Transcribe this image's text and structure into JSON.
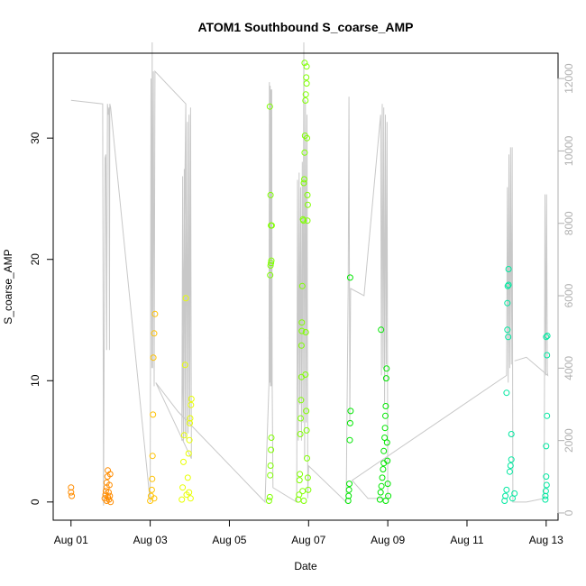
{
  "chart_data": {
    "type": "scatter",
    "title": "ATOM1 Southbound S_coarse_AMP",
    "xlabel": "Date",
    "ylabel": "S_coarse_AMP",
    "x_ticks": [
      "Aug 01",
      "Aug 03",
      "Aug 05",
      "Aug 07",
      "Aug 09",
      "Aug 11",
      "Aug 13"
    ],
    "x_tick_days": [
      1,
      3,
      5,
      7,
      9,
      11,
      13
    ],
    "xlim_days": [
      0.55,
      13.3
    ],
    "y_ticks": [
      "0",
      "10",
      "20",
      "30"
    ],
    "y_tick_values": [
      0,
      10,
      20,
      30
    ],
    "ylim": [
      -1.5,
      37
    ],
    "y2_ticks": [
      "0",
      "2000",
      "4000",
      "6000",
      "8000",
      "10000",
      "12000"
    ],
    "y2_tick_values": [
      0,
      2000,
      4000,
      6000,
      8000,
      10000,
      12000
    ],
    "y2lim": [
      -200,
      12700
    ],
    "grid": false,
    "series": [
      {
        "color": "#ff8c00",
        "points": [
          [
            1.0,
            1.2
          ],
          [
            1.0,
            0.8
          ],
          [
            1.02,
            0.5
          ],
          [
            1.85,
            0.3
          ],
          [
            1.87,
            0.6
          ],
          [
            1.88,
            0.9
          ],
          [
            1.9,
            1.2
          ],
          [
            1.9,
            1.6
          ],
          [
            1.92,
            2.1
          ],
          [
            1.93,
            2.6
          ],
          [
            1.9,
            0.1
          ],
          [
            1.93,
            0.4
          ],
          [
            1.95,
            0.8
          ],
          [
            1.96,
            0.2
          ],
          [
            1.97,
            1.4
          ],
          [
            1.98,
            0.5
          ],
          [
            1.99,
            2.3
          ],
          [
            2.0,
            0.0
          ]
        ]
      },
      {
        "color": "#ffc200",
        "points": [
          [
            3.0,
            0.1
          ],
          [
            3.02,
            0.5
          ],
          [
            3.04,
            1.0
          ],
          [
            3.05,
            1.9
          ],
          [
            3.06,
            3.8
          ],
          [
            3.07,
            7.2
          ],
          [
            3.08,
            11.9
          ],
          [
            3.1,
            13.9
          ],
          [
            3.12,
            15.5
          ],
          [
            3.1,
            0.3
          ]
        ]
      },
      {
        "color": "#e8ff00",
        "points": [
          [
            3.8,
            0.2
          ],
          [
            3.82,
            1.2
          ],
          [
            3.84,
            3.3
          ],
          [
            3.86,
            5.5
          ],
          [
            3.88,
            11.3
          ],
          [
            3.9,
            16.8
          ],
          [
            3.92,
            0.6
          ],
          [
            3.95,
            2.0
          ],
          [
            3.97,
            4.0
          ],
          [
            3.99,
            5.1
          ],
          [
            4.0,
            6.5
          ],
          [
            4.01,
            6.9
          ],
          [
            4.03,
            8.0
          ],
          [
            4.04,
            8.5
          ],
          [
            4.02,
            0.3
          ],
          [
            3.98,
            0.8
          ]
        ]
      },
      {
        "color": "#7fff00",
        "points": [
          [
            6.0,
            0.1
          ],
          [
            6.02,
            0.4
          ],
          [
            6.03,
            2.2
          ],
          [
            6.04,
            3.0
          ],
          [
            6.05,
            4.3
          ],
          [
            6.06,
            5.3
          ],
          [
            6.03,
            18.7
          ],
          [
            6.04,
            19.5
          ],
          [
            6.05,
            19.7
          ],
          [
            6.06,
            19.9
          ],
          [
            6.05,
            22.8
          ],
          [
            6.04,
            25.3
          ],
          [
            6.02,
            32.6
          ],
          [
            6.07,
            22.8
          ],
          [
            6.74,
            0.2
          ],
          [
            6.76,
            0.6
          ],
          [
            6.77,
            1.8
          ],
          [
            6.78,
            2.3
          ],
          [
            6.79,
            5.6
          ],
          [
            6.8,
            6.9
          ],
          [
            6.81,
            8.4
          ],
          [
            6.82,
            10.3
          ],
          [
            6.82,
            12.9
          ],
          [
            6.83,
            14.1
          ],
          [
            6.83,
            14.8
          ],
          [
            6.84,
            17.8
          ],
          [
            6.86,
            23.3
          ],
          [
            6.87,
            23.2
          ],
          [
            6.88,
            26.3
          ],
          [
            6.89,
            26.6
          ],
          [
            6.9,
            28.8
          ],
          [
            6.91,
            30.2
          ],
          [
            6.92,
            33.1
          ],
          [
            6.93,
            33.6
          ],
          [
            6.94,
            35.0
          ],
          [
            6.95,
            35.9
          ],
          [
            6.9,
            36.2
          ],
          [
            6.95,
            34.5
          ],
          [
            6.96,
            30.0
          ],
          [
            6.97,
            25.3
          ],
          [
            6.98,
            24.5
          ],
          [
            6.97,
            23.2
          ],
          [
            6.92,
            10.5
          ],
          [
            6.93,
            14.0
          ],
          [
            6.94,
            7.5
          ],
          [
            6.95,
            5.9
          ],
          [
            6.96,
            3.6
          ],
          [
            6.98,
            2.0
          ],
          [
            6.99,
            1.0
          ],
          [
            6.85,
            0.9
          ],
          [
            6.88,
            0.1
          ]
        ]
      },
      {
        "color": "#00e600",
        "points": [
          [
            8.0,
            0.1
          ],
          [
            8.01,
            0.5
          ],
          [
            8.02,
            1.0
          ],
          [
            8.03,
            1.5
          ],
          [
            8.04,
            5.1
          ],
          [
            8.05,
            6.5
          ],
          [
            8.06,
            7.5
          ],
          [
            8.05,
            18.5
          ],
          [
            8.8,
            0.2
          ],
          [
            8.82,
            0.8
          ],
          [
            8.84,
            1.3
          ],
          [
            8.83,
            14.2
          ],
          [
            8.86,
            2.0
          ],
          [
            8.88,
            2.7
          ],
          [
            8.9,
            3.2
          ],
          [
            8.9,
            4.2
          ],
          [
            8.92,
            5.3
          ],
          [
            8.93,
            6.1
          ],
          [
            8.94,
            7.1
          ],
          [
            8.95,
            7.9
          ],
          [
            8.96,
            10.2
          ],
          [
            8.97,
            11.0
          ],
          [
            8.98,
            4.9
          ],
          [
            8.99,
            3.4
          ],
          [
            9.0,
            1.5
          ],
          [
            9.01,
            0.5
          ],
          [
            8.95,
            0.1
          ]
        ]
      },
      {
        "color": "#00e8a0",
        "points": [
          [
            11.95,
            0.1
          ],
          [
            11.97,
            0.5
          ],
          [
            12.0,
            1.0
          ],
          [
            12.0,
            9.0
          ],
          [
            12.02,
            14.2
          ],
          [
            12.04,
            13.6
          ],
          [
            12.02,
            16.4
          ],
          [
            12.03,
            17.8
          ],
          [
            12.05,
            17.9
          ],
          [
            12.05,
            19.2
          ],
          [
            12.08,
            2.5
          ],
          [
            12.1,
            3.0
          ],
          [
            12.12,
            3.5
          ],
          [
            12.12,
            5.6
          ],
          [
            12.15,
            0.3
          ],
          [
            12.2,
            0.7
          ],
          [
            12.98,
            0.2
          ],
          [
            12.99,
            0.9
          ],
          [
            13.0,
            2.1
          ],
          [
            13.0,
            4.6
          ],
          [
            13.02,
            7.1
          ],
          [
            13.02,
            12.1
          ],
          [
            13.0,
            13.6
          ],
          [
            13.03,
            13.7
          ],
          [
            13.01,
            1.4
          ],
          [
            12.98,
            0.5
          ]
        ]
      }
    ],
    "secondary_line": {
      "color": "#c8c8c8",
      "points": [
        [
          1.0,
          11400
        ],
        [
          1.8,
          11300
        ],
        [
          1.82,
          200
        ],
        [
          1.84,
          5600
        ],
        [
          1.86,
          9800
        ],
        [
          1.88,
          9900
        ],
        [
          1.9,
          4500
        ],
        [
          1.92,
          11300
        ],
        [
          1.94,
          11000
        ],
        [
          1.96,
          11200
        ],
        [
          1.97,
          4500
        ],
        [
          1.98,
          11300
        ],
        [
          2.0,
          11200
        ],
        [
          3.0,
          300
        ],
        [
          3.02,
          12000
        ],
        [
          3.04,
          4000
        ],
        [
          3.05,
          13000
        ],
        [
          3.06,
          4000
        ],
        [
          3.08,
          12200
        ],
        [
          3.1,
          3500
        ],
        [
          3.12,
          12200
        ],
        [
          3.9,
          11300
        ],
        [
          3.8,
          2000
        ],
        [
          3.82,
          9300
        ],
        [
          3.84,
          2000
        ],
        [
          3.86,
          9500
        ],
        [
          3.88,
          2100
        ],
        [
          3.9,
          11300
        ],
        [
          3.92,
          2000
        ],
        [
          3.94,
          10800
        ],
        [
          3.96,
          2200
        ],
        [
          3.98,
          11000
        ],
        [
          4.0,
          2500
        ],
        [
          4.02,
          11200
        ],
        [
          4.04,
          1500
        ],
        [
          3.14,
          3600
        ],
        [
          3.7,
          2800
        ],
        [
          5.9,
          300
        ],
        [
          6.0,
          3600
        ],
        [
          6.01,
          11900
        ],
        [
          6.02,
          3600
        ],
        [
          6.03,
          11800
        ],
        [
          6.04,
          3500
        ],
        [
          6.05,
          11700
        ],
        [
          6.06,
          3500
        ],
        [
          6.07,
          11700
        ],
        [
          6.08,
          3600
        ],
        [
          6.1,
          700
        ],
        [
          6.7,
          300
        ],
        [
          6.72,
          9200
        ],
        [
          6.74,
          2000
        ],
        [
          6.76,
          9400
        ],
        [
          6.78,
          3000
        ],
        [
          6.8,
          9000
        ],
        [
          6.82,
          2000
        ],
        [
          6.84,
          9700
        ],
        [
          6.86,
          2500
        ],
        [
          6.88,
          13000
        ],
        [
          6.9,
          1500
        ],
        [
          6.92,
          11400
        ],
        [
          6.94,
          2500
        ],
        [
          6.96,
          11000
        ],
        [
          6.98,
          400
        ],
        [
          7.0,
          1300
        ],
        [
          7.95,
          300
        ],
        [
          8.0,
          6200
        ],
        [
          8.02,
          11500
        ],
        [
          8.04,
          2500
        ],
        [
          8.06,
          6200
        ],
        [
          8.4,
          6000
        ],
        [
          8.82,
          11000
        ],
        [
          8.84,
          3800
        ],
        [
          8.86,
          11300
        ],
        [
          8.88,
          4000
        ],
        [
          8.9,
          11200
        ],
        [
          8.92,
          3000
        ],
        [
          8.94,
          11000
        ],
        [
          8.96,
          4100
        ],
        [
          8.98,
          10800
        ],
        [
          9.0,
          400
        ],
        [
          8.5,
          400
        ],
        [
          8.1,
          900
        ],
        [
          12.0,
          3800
        ],
        [
          12.02,
          9000
        ],
        [
          12.04,
          3600
        ],
        [
          12.06,
          9900
        ],
        [
          12.08,
          4000
        ],
        [
          12.1,
          10100
        ],
        [
          12.12,
          4100
        ],
        [
          12.14,
          10100
        ],
        [
          12.16,
          300
        ],
        [
          12.5,
          300
        ],
        [
          12.95,
          400
        ],
        [
          12.97,
          8800
        ],
        [
          12.99,
          3800
        ],
        [
          13.01,
          8800
        ],
        [
          13.03,
          3900
        ],
        [
          13.04,
          3800
        ],
        [
          12.5,
          4300
        ],
        [
          12.2,
          4200
        ]
      ]
    }
  }
}
